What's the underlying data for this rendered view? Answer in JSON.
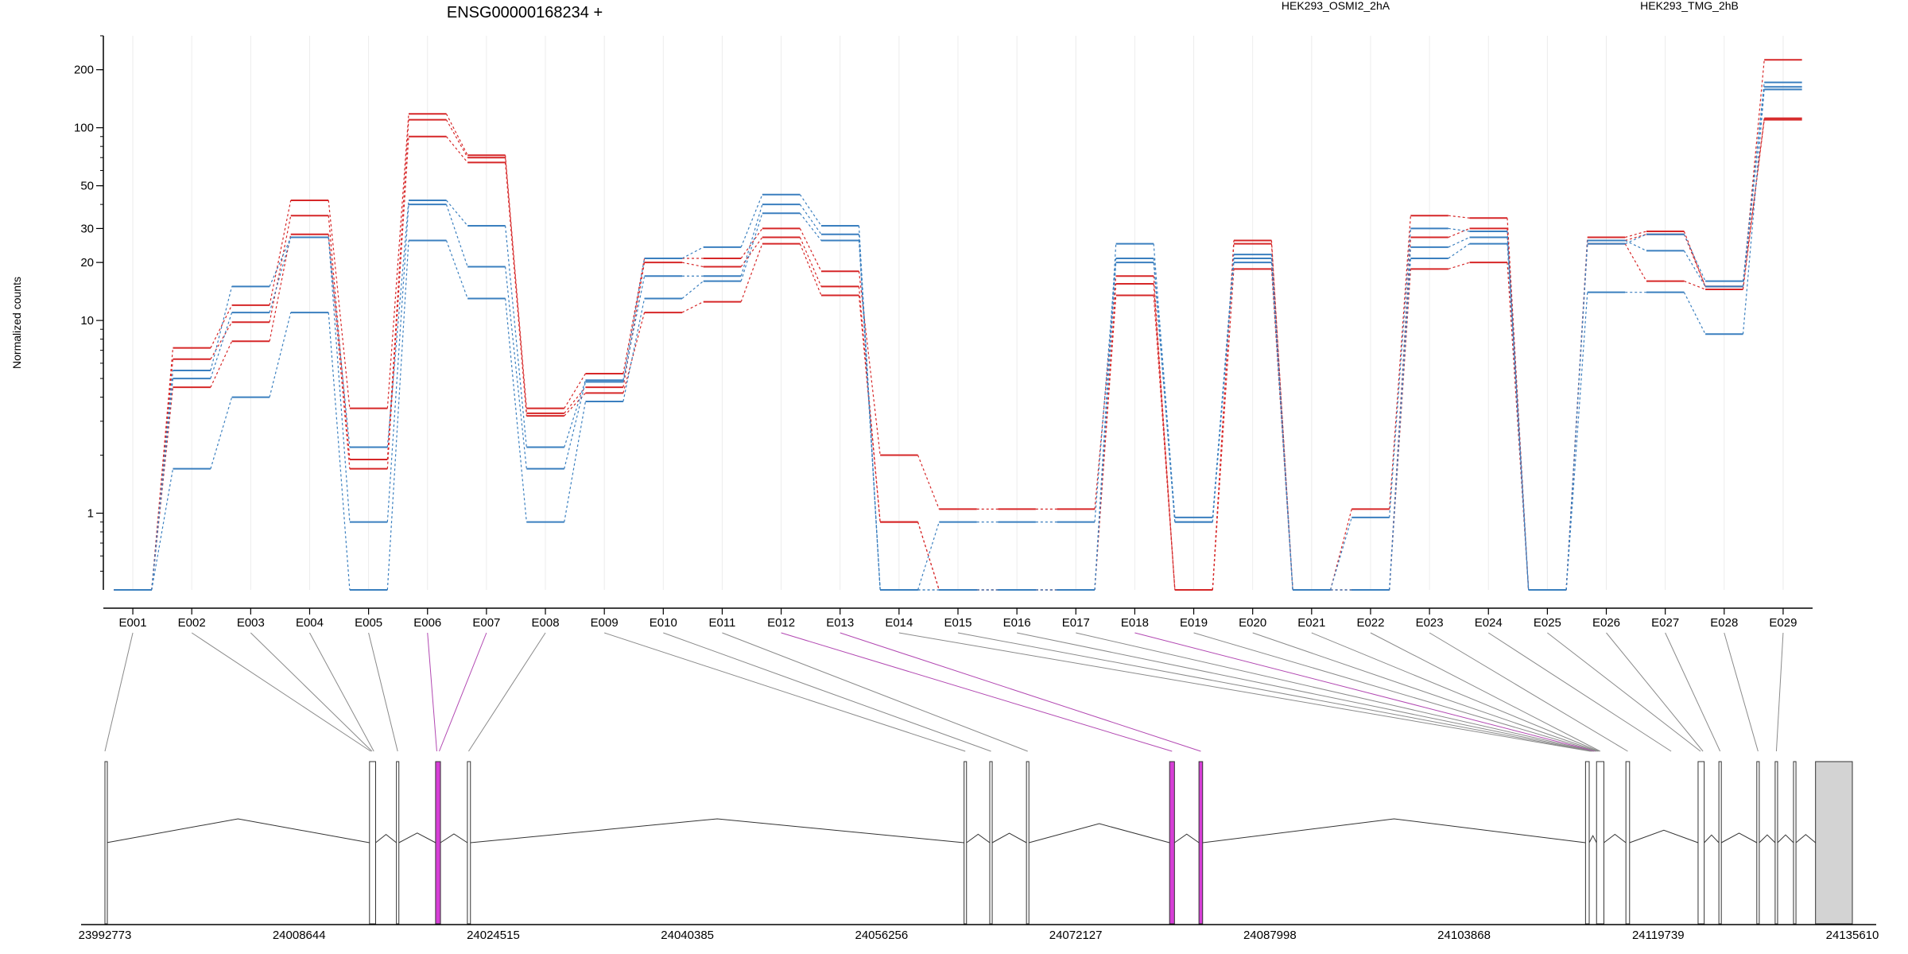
{
  "chart_data": {
    "type": "line",
    "title": "ENSG00000168234 +",
    "ylabel": "Normalized counts",
    "y_scale": "log",
    "ylim": [
      0.4,
      300
    ],
    "y_ticks": [
      1,
      10,
      20,
      30,
      50,
      100,
      200
    ],
    "grid": "vertical only, faint",
    "legend": [
      {
        "name": "HEK293_OSMI2_2hA",
        "color": "#d62728"
      },
      {
        "name": "HEK293_TMG_2hB",
        "color": "#3a7fbf"
      }
    ],
    "categories": [
      "E001",
      "E002",
      "E003",
      "E004",
      "E005",
      "E006",
      "E007",
      "E008",
      "E009",
      "E010",
      "E011",
      "E012",
      "E013",
      "E014",
      "E015",
      "E016",
      "E017",
      "E018",
      "E019",
      "E020",
      "E021",
      "E022",
      "E023",
      "E024",
      "E025",
      "E026",
      "E027",
      "E028",
      "E029"
    ],
    "series": [
      {
        "name": "HEK293_OSMI2_2hA",
        "color": "#d62728",
        "values": [
          0.4,
          7.2,
          12,
          42,
          3.5,
          118,
          72,
          3.5,
          5.3,
          21,
          21,
          30,
          18,
          2,
          1.05,
          1.05,
          1.05,
          17,
          0.4,
          26,
          0.4,
          1.05,
          35,
          34,
          0.4,
          27,
          29,
          15,
          225
        ]
      },
      {
        "name": "HEK293_OSMI2_2hA",
        "color": "#d62728",
        "values": [
          0.4,
          6.3,
          9.8,
          35,
          1.9,
          110,
          70,
          3.3,
          4.5,
          20,
          19,
          27,
          15,
          0.9,
          0.4,
          0.4,
          0.4,
          15.5,
          0.4,
          25,
          0.4,
          0.4,
          27,
          30,
          0.4,
          26,
          28,
          15,
          112
        ]
      },
      {
        "name": "HEK293_OSMI2_2hA",
        "color": "#d62728",
        "values": [
          0.4,
          4.5,
          7.8,
          28,
          1.7,
          90,
          66,
          3.2,
          4.2,
          11,
          12.5,
          25,
          13.5,
          0.9,
          0.4,
          0.4,
          0.4,
          13.5,
          0.4,
          18.5,
          0.4,
          0.4,
          18.5,
          20,
          0.4,
          25,
          16,
          14.5,
          110
        ]
      },
      {
        "name": "HEK293_TMG_2hB",
        "color": "#3a7fbf",
        "values": [
          0.4,
          5.5,
          15,
          27,
          2.2,
          42,
          31,
          2.2,
          4.9,
          21,
          24,
          45,
          31,
          0.4,
          0.4,
          0.4,
          0.4,
          25,
          0.95,
          22,
          0.4,
          0.95,
          30,
          29,
          0.4,
          25,
          28,
          16,
          172
        ]
      },
      {
        "name": "HEK293_TMG_2hB",
        "color": "#3a7fbf",
        "values": [
          0.4,
          5,
          11,
          27,
          0.9,
          40,
          19,
          1.7,
          4.8,
          17,
          17,
          40,
          28,
          0.4,
          0.9,
          0.9,
          0.9,
          21,
          0.9,
          21,
          0.4,
          0.4,
          24,
          27,
          0.4,
          26,
          23,
          15,
          163
        ]
      },
      {
        "name": "HEK293_TMG_2hB",
        "color": "#3a7fbf",
        "values": [
          0.4,
          1.7,
          4,
          11,
          0.4,
          26,
          13,
          0.9,
          3.8,
          13,
          16,
          36,
          26,
          0.4,
          0.4,
          0.4,
          0.4,
          20,
          0.9,
          20,
          0.4,
          0.4,
          21,
          25,
          0.4,
          14,
          14,
          8.5,
          158
        ]
      }
    ],
    "genome": {
      "start": 23992773,
      "end": 24135610,
      "ticks": [
        23992773,
        24008644,
        24024515,
        24040385,
        24056256,
        24072127,
        24087998,
        24103868,
        24119739,
        24135610
      ],
      "exons": [
        {
          "start": 23992773,
          "end": 23992900,
          "fill": "#ffffff",
          "highlight": false
        },
        {
          "start": 24014400,
          "end": 24014900,
          "fill": "#ffffff",
          "highlight": false
        },
        {
          "start": 24016600,
          "end": 24016800,
          "fill": "#ffffff",
          "highlight": false
        },
        {
          "start": 24019800,
          "end": 24020200,
          "fill": "#d63fd6",
          "highlight": true
        },
        {
          "start": 24022400,
          "end": 24022650,
          "fill": "#ffffff",
          "highlight": false
        },
        {
          "start": 24063000,
          "end": 24063200,
          "fill": "#ffffff",
          "highlight": false
        },
        {
          "start": 24065100,
          "end": 24065300,
          "fill": "#ffffff",
          "highlight": false
        },
        {
          "start": 24068100,
          "end": 24068300,
          "fill": "#ffffff",
          "highlight": false
        },
        {
          "start": 24079800,
          "end": 24080200,
          "fill": "#d63fd6",
          "highlight": true
        },
        {
          "start": 24082200,
          "end": 24082500,
          "fill": "#d63fd6",
          "highlight": true
        },
        {
          "start": 24113800,
          "end": 24114100,
          "fill": "#ffffff",
          "highlight": false
        },
        {
          "start": 24114700,
          "end": 24115300,
          "fill": "#ffffff",
          "highlight": false
        },
        {
          "start": 24117100,
          "end": 24117400,
          "fill": "#ffffff",
          "highlight": false
        },
        {
          "start": 24123000,
          "end": 24123500,
          "fill": "#ffffff",
          "highlight": false
        },
        {
          "start": 24124700,
          "end": 24124900,
          "fill": "#ffffff",
          "highlight": false
        },
        {
          "start": 24127800,
          "end": 24128000,
          "fill": "#ffffff",
          "highlight": false
        },
        {
          "start": 24129300,
          "end": 24129500,
          "fill": "#ffffff",
          "highlight": false
        },
        {
          "start": 24130800,
          "end": 24131000,
          "fill": "#ffffff",
          "highlight": false
        },
        {
          "start": 24132600,
          "end": 24135610,
          "fill": "#d3d3d3",
          "highlight": false
        }
      ],
      "bin_positions": [
        23992773,
        24014500,
        24014600,
        24014750,
        24016700,
        24019900,
        24020100,
        24022500,
        24063100,
        24065200,
        24068200,
        24080000,
        24082350,
        24114200,
        24114300,
        24114400,
        24114500,
        24114600,
        24114700,
        24114800,
        24114900,
        24115000,
        24117250,
        24120800,
        24123200,
        24123400,
        24124800,
        24127900,
        24129400
      ],
      "highlighted_bins": [
        "E006",
        "E007",
        "E012",
        "E013",
        "E018"
      ]
    }
  }
}
